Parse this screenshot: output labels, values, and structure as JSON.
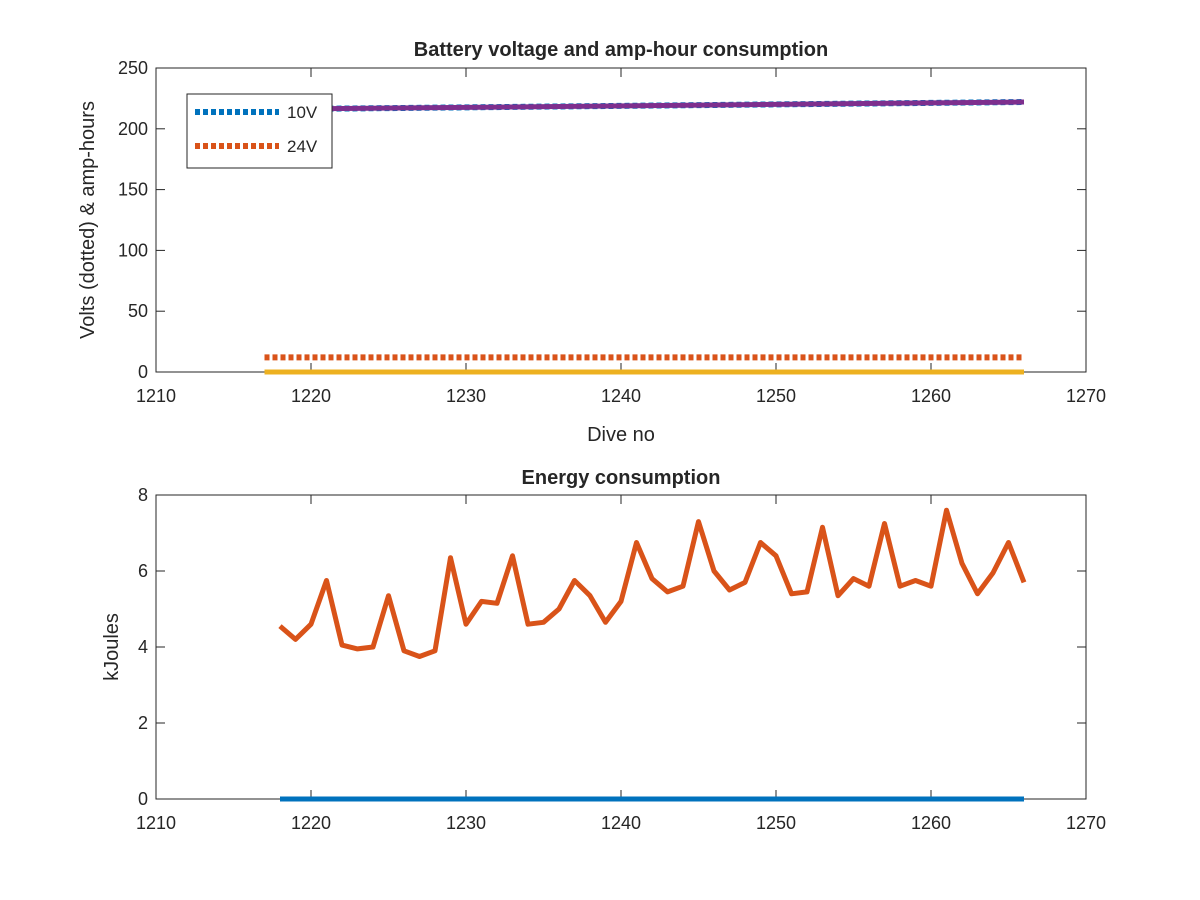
{
  "chart_data": [
    {
      "type": "line",
      "title": "Battery voltage and amp-hour consumption",
      "xlabel": "Dive no",
      "ylabel": "Volts (dotted) & amp-hours",
      "xlim": [
        1210,
        1270
      ],
      "ylim": [
        0,
        250
      ],
      "xticks": [
        1210,
        1220,
        1230,
        1240,
        1250,
        1260,
        1270
      ],
      "yticks": [
        0,
        50,
        100,
        150,
        200,
        250
      ],
      "grid": false,
      "legend": {
        "placement": "top-left",
        "entries": [
          "10V",
          "24V"
        ]
      },
      "series": [
        {
          "name": "10V",
          "style": "dotted",
          "color": "#0072BD",
          "x": [
            1217,
            1266
          ],
          "y": [
            216,
            222
          ]
        },
        {
          "name": "24V",
          "style": "dotted",
          "color": "#D95319",
          "x": [
            1217,
            1266
          ],
          "y": [
            12,
            12
          ]
        },
        {
          "style": "solid",
          "color": "#7E2F8E",
          "x": [
            1217,
            1266
          ],
          "y": [
            216,
            222
          ]
        },
        {
          "style": "solid",
          "color": "#EDB120",
          "x": [
            1217,
            1266
          ],
          "y": [
            0,
            0
          ]
        }
      ]
    },
    {
      "type": "line",
      "title": "Energy consumption",
      "xlabel": "",
      "ylabel": "kJoules",
      "xlim": [
        1210,
        1270
      ],
      "ylim": [
        0,
        8
      ],
      "xticks": [
        1210,
        1220,
        1230,
        1240,
        1250,
        1260,
        1270
      ],
      "yticks": [
        0,
        2,
        4,
        6,
        8
      ],
      "grid": false,
      "series": [
        {
          "style": "solid",
          "color": "#D95319",
          "x": [
            1218,
            1219,
            1220,
            1221,
            1222,
            1223,
            1224,
            1225,
            1226,
            1227,
            1228,
            1229,
            1230,
            1231,
            1232,
            1233,
            1234,
            1235,
            1236,
            1237,
            1238,
            1239,
            1240,
            1241,
            1242,
            1243,
            1244,
            1245,
            1246,
            1247,
            1248,
            1249,
            1250,
            1251,
            1252,
            1253,
            1254,
            1255,
            1256,
            1257,
            1258,
            1259,
            1260,
            1261,
            1262,
            1263,
            1264,
            1265,
            1266
          ],
          "y": [
            4.55,
            4.2,
            4.6,
            5.75,
            4.05,
            3.95,
            4.0,
            5.35,
            3.9,
            3.75,
            3.9,
            6.35,
            4.6,
            5.2,
            5.15,
            6.4,
            4.6,
            4.65,
            5.0,
            5.75,
            5.35,
            4.65,
            5.2,
            6.75,
            5.8,
            5.45,
            5.6,
            7.3,
            6.0,
            5.5,
            5.7,
            6.75,
            6.4,
            5.4,
            5.45,
            7.15,
            5.35,
            5.8,
            5.6,
            7.25,
            5.6,
            5.75,
            5.6,
            7.6,
            6.2,
            5.4,
            5.95,
            6.75,
            5.7
          ]
        },
        {
          "style": "solid",
          "color": "#0072BD",
          "x": [
            1218,
            1266
          ],
          "y": [
            0,
            0
          ]
        }
      ]
    }
  ]
}
